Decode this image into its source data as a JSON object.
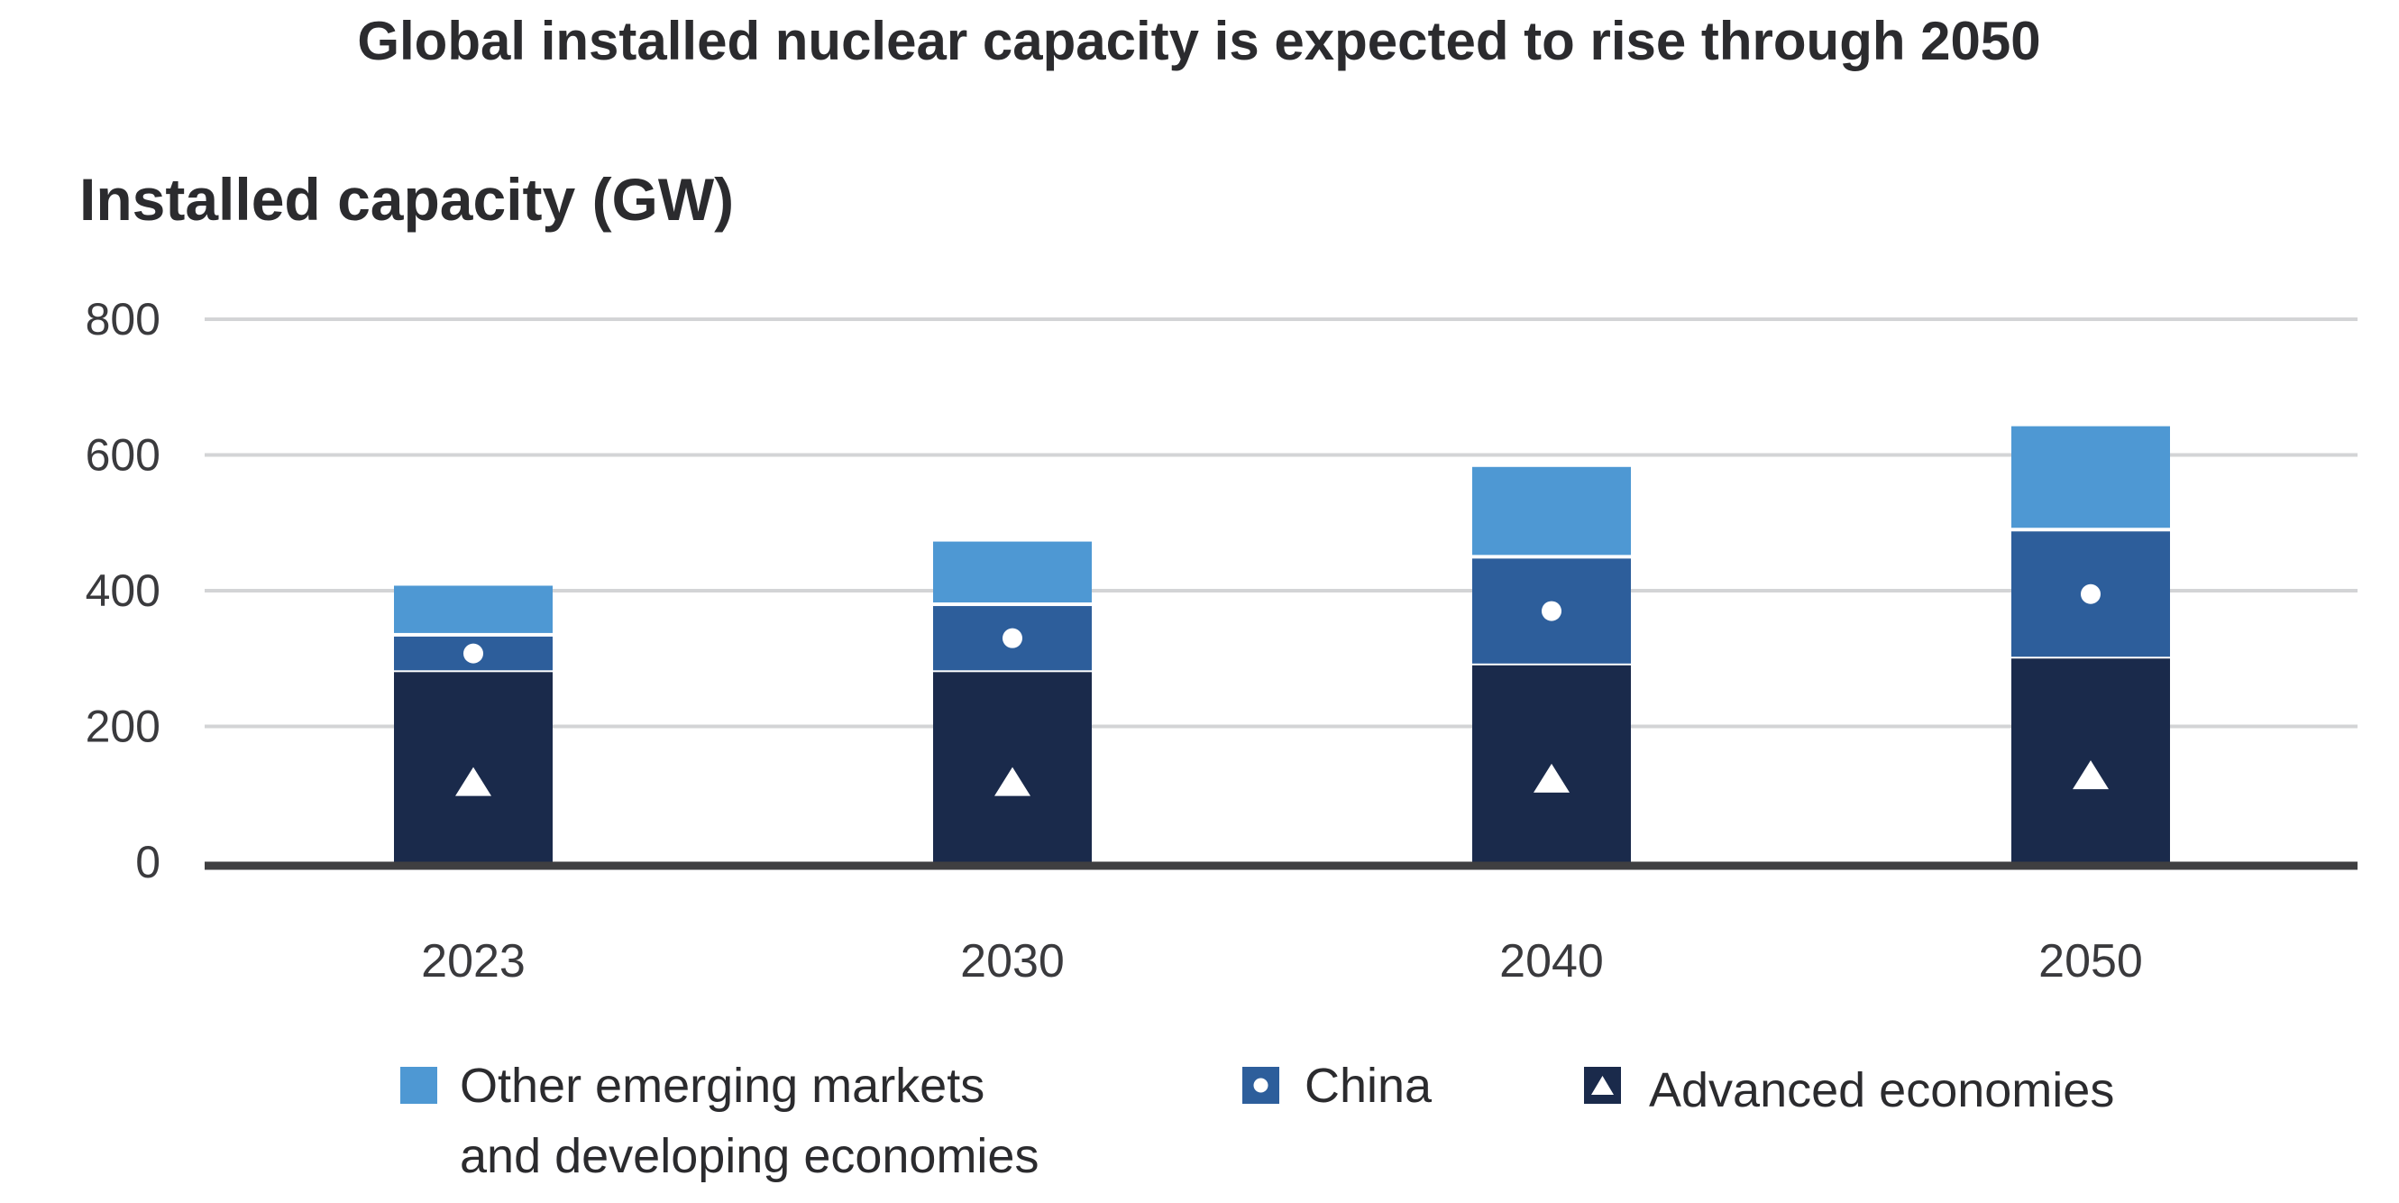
{
  "chart_data": {
    "type": "bar",
    "stacked": true,
    "title": "Global installed nuclear capacity is expected to rise through 2050",
    "ylabel": "Installed capacity (GW)",
    "xlabel": "",
    "categories": [
      "2023",
      "2030",
      "2040",
      "2050"
    ],
    "ylim": [
      0,
      800
    ],
    "yticks": [
      0,
      200,
      400,
      600,
      800
    ],
    "grid": true,
    "legend_position": "bottom",
    "series": [
      {
        "name": "Advanced economies",
        "values": [
          280,
          280,
          290,
          300
        ],
        "color": "#1a2a4b",
        "marker": "triangle"
      },
      {
        "name": "China",
        "values": [
          55,
          100,
          160,
          190
        ],
        "color": "#2d5e9b",
        "marker": "circle"
      },
      {
        "name": "Other emerging markets and developing economies",
        "legend_lines": [
          "Other emerging markets",
          "and developing economies"
        ],
        "values": [
          75,
          95,
          135,
          155
        ],
        "color": "#4e98d3",
        "marker": "none"
      }
    ]
  }
}
